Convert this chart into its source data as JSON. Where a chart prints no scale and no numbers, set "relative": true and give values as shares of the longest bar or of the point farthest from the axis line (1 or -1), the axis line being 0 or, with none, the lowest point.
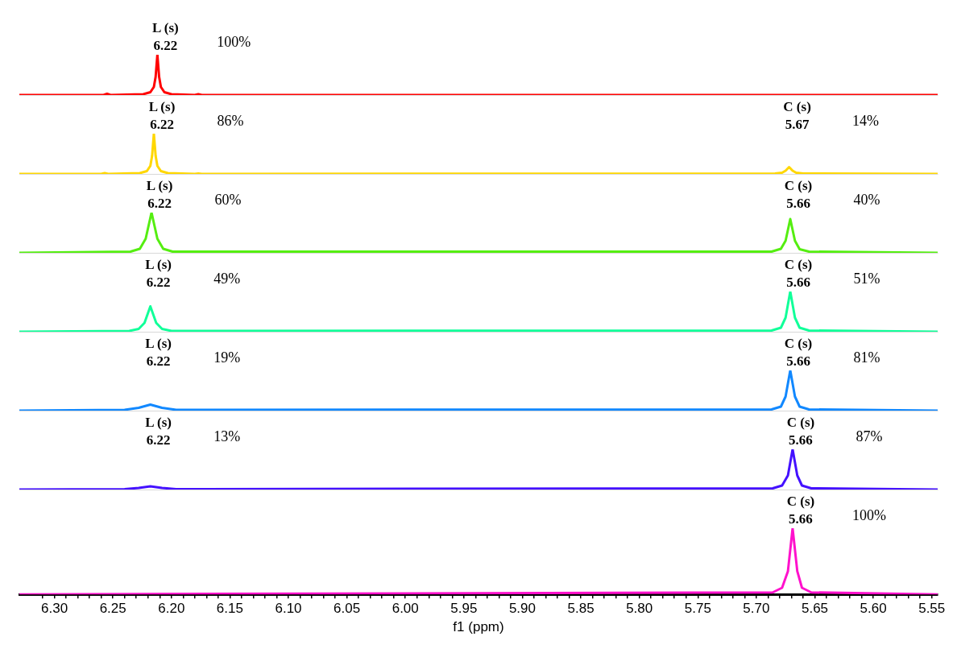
{
  "chart_data": [
    {
      "type": "line",
      "relative": true,
      "tick_labels": false,
      "marker": "none",
      "xlim": [
        6.33,
        5.545
      ],
      "series": [
        {
          "color": "#ff0000",
          "x": [
            6.33,
            6.258,
            6.255,
            6.252,
            6.224,
            6.218,
            6.215,
            6.2135,
            6.212,
            6.2105,
            6.209,
            6.206,
            6.2,
            6.18,
            6.177,
            6.174,
            5.545
          ],
          "values": [
            0,
            0,
            0.03,
            0,
            0.02,
            0.07,
            0.2,
            0.45,
            1,
            0.45,
            0.2,
            0.07,
            0.02,
            0,
            0.02,
            0,
            0
          ]
        }
      ],
      "annotations": [
        "L (s)\n6.22",
        "100%"
      ]
    },
    {
      "type": "line",
      "relative": true,
      "tick_labels": false,
      "marker": "none",
      "xlim": [
        6.33,
        5.545
      ],
      "series": [
        {
          "color": "#ffd700",
          "x": [
            6.33,
            6.26,
            6.257,
            6.254,
            6.227,
            6.221,
            6.218,
            6.2165,
            6.215,
            6.2135,
            6.212,
            6.209,
            6.203,
            6.18,
            6.177,
            6.174,
            5.684,
            5.678,
            5.675,
            5.672,
            5.669,
            5.666,
            5.66,
            5.545
          ],
          "values": [
            0,
            0,
            0.02,
            0,
            0.02,
            0.07,
            0.2,
            0.45,
            1,
            0.45,
            0.2,
            0.07,
            0.02,
            0,
            0.01,
            0,
            0.01,
            0.03,
            0.08,
            0.17,
            0.08,
            0.03,
            0.01,
            0
          ]
        }
      ],
      "annotations": [
        "L (s)\n6.22",
        "86%",
        "C (s)\n5.67",
        "14%"
      ]
    },
    {
      "type": "line",
      "relative": true,
      "tick_labels": false,
      "marker": "none",
      "xlim": [
        6.33,
        5.545
      ],
      "series": [
        {
          "color": "#55ee11",
          "x": [
            6.33,
            6.235,
            6.227,
            6.222,
            6.217,
            6.212,
            6.207,
            6.199,
            5.687,
            5.679,
            5.675,
            5.671,
            5.667,
            5.663,
            5.655,
            5.545
          ],
          "values": [
            0,
            0.03,
            0.1,
            0.35,
            1,
            0.35,
            0.1,
            0.03,
            0.03,
            0.1,
            0.3,
            0.84,
            0.3,
            0.09,
            0.03,
            0
          ]
        }
      ],
      "annotations": [
        "L (s)\n6.22",
        "60%",
        "C (s)\n5.66",
        "40%"
      ]
    },
    {
      "type": "line",
      "relative": true,
      "tick_labels": false,
      "marker": "none",
      "xlim": [
        6.33,
        5.545
      ],
      "series": [
        {
          "color": "#11ff99",
          "x": [
            6.33,
            6.236,
            6.228,
            6.223,
            6.218,
            6.213,
            6.208,
            6.2,
            5.687,
            5.679,
            5.675,
            5.671,
            5.667,
            5.663,
            5.655,
            5.545
          ],
          "values": [
            0,
            0.02,
            0.07,
            0.22,
            0.63,
            0.22,
            0.07,
            0.02,
            0.03,
            0.1,
            0.35,
            1,
            0.35,
            0.1,
            0.03,
            0
          ]
        }
      ],
      "annotations": [
        "L (s)\n6.22",
        "49%",
        "C (s)\n5.66",
        "51%"
      ]
    },
    {
      "type": "line",
      "relative": true,
      "tick_labels": false,
      "marker": "none",
      "xlim": [
        6.33,
        5.545
      ],
      "series": [
        {
          "color": "#1188ff",
          "x": [
            6.33,
            6.24,
            6.228,
            6.218,
            6.208,
            6.196,
            5.687,
            5.679,
            5.675,
            5.671,
            5.667,
            5.663,
            5.655,
            5.545
          ],
          "values": [
            0,
            0.02,
            0.07,
            0.15,
            0.07,
            0.02,
            0.03,
            0.1,
            0.35,
            1,
            0.35,
            0.1,
            0.03,
            0
          ]
        }
      ],
      "annotations": [
        "L (s)\n6.22",
        "19%",
        "C (s)\n5.66",
        "81%"
      ]
    },
    {
      "type": "line",
      "relative": true,
      "tick_labels": false,
      "marker": "none",
      "xlim": [
        6.33,
        5.545
      ],
      "series": [
        {
          "color": "#4411ff",
          "x": [
            6.33,
            6.24,
            6.228,
            6.218,
            6.208,
            6.196,
            5.686,
            5.678,
            5.673,
            5.669,
            5.665,
            5.661,
            5.653,
            5.545
          ],
          "values": [
            0,
            0.01,
            0.04,
            0.08,
            0.04,
            0.01,
            0.03,
            0.1,
            0.35,
            1,
            0.35,
            0.1,
            0.03,
            0
          ]
        }
      ],
      "annotations": [
        "L (s)\n6.22",
        "13%",
        "C (s)\n5.66",
        "87%"
      ]
    },
    {
      "type": "line",
      "relative": true,
      "xlabel": "f1 (ppm)",
      "xlim": [
        6.33,
        5.545
      ],
      "marker": "none",
      "xticks": [
        {
          "value": 6.31,
          "label": null
        },
        {
          "value": 6.3,
          "label": "6.30"
        },
        {
          "value": 6.29,
          "label": null
        },
        {
          "value": 6.28,
          "label": null
        },
        {
          "value": 6.27,
          "label": null
        },
        {
          "value": 6.26,
          "label": null
        },
        {
          "value": 6.25,
          "label": "6.25"
        },
        {
          "value": 6.24,
          "label": null
        },
        {
          "value": 6.23,
          "label": null
        },
        {
          "value": 6.22,
          "label": null
        },
        {
          "value": 6.21,
          "label": null
        },
        {
          "value": 6.2,
          "label": "6.20"
        },
        {
          "value": 6.19,
          "label": null
        },
        {
          "value": 6.18,
          "label": null
        },
        {
          "value": 6.17,
          "label": null
        },
        {
          "value": 6.16,
          "label": null
        },
        {
          "value": 6.15,
          "label": "6.15"
        },
        {
          "value": 6.14,
          "label": null
        },
        {
          "value": 6.13,
          "label": null
        },
        {
          "value": 6.12,
          "label": null
        },
        {
          "value": 6.11,
          "label": null
        },
        {
          "value": 6.1,
          "label": "6.10"
        },
        {
          "value": 6.09,
          "label": null
        },
        {
          "value": 6.08,
          "label": null
        },
        {
          "value": 6.07,
          "label": null
        },
        {
          "value": 6.06,
          "label": null
        },
        {
          "value": 6.05,
          "label": "6.05"
        },
        {
          "value": 6.04,
          "label": null
        },
        {
          "value": 6.03,
          "label": null
        },
        {
          "value": 6.02,
          "label": null
        },
        {
          "value": 6.01,
          "label": null
        },
        {
          "value": 6.0,
          "label": "6.00"
        },
        {
          "value": 5.99,
          "label": null
        },
        {
          "value": 5.98,
          "label": null
        },
        {
          "value": 5.97,
          "label": null
        },
        {
          "value": 5.96,
          "label": null
        },
        {
          "value": 5.95,
          "label": "5.95"
        },
        {
          "value": 5.94,
          "label": null
        },
        {
          "value": 5.93,
          "label": null
        },
        {
          "value": 5.92,
          "label": null
        },
        {
          "value": 5.91,
          "label": null
        },
        {
          "value": 5.9,
          "label": "5.90"
        },
        {
          "value": 5.89,
          "label": null
        },
        {
          "value": 5.88,
          "label": null
        },
        {
          "value": 5.87,
          "label": null
        },
        {
          "value": 5.86,
          "label": null
        },
        {
          "value": 5.85,
          "label": "5.85"
        },
        {
          "value": 5.84,
          "label": null
        },
        {
          "value": 5.83,
          "label": null
        },
        {
          "value": 5.82,
          "label": null
        },
        {
          "value": 5.81,
          "label": null
        },
        {
          "value": 5.8,
          "label": "5.80"
        },
        {
          "value": 5.79,
          "label": null
        },
        {
          "value": 5.78,
          "label": null
        },
        {
          "value": 5.77,
          "label": null
        },
        {
          "value": 5.76,
          "label": null
        },
        {
          "value": 5.75,
          "label": "5.75"
        },
        {
          "value": 5.74,
          "label": null
        },
        {
          "value": 5.73,
          "label": null
        },
        {
          "value": 5.72,
          "label": null
        },
        {
          "value": 5.71,
          "label": null
        },
        {
          "value": 5.7,
          "label": "5.70"
        },
        {
          "value": 5.69,
          "label": null
        },
        {
          "value": 5.68,
          "label": null
        },
        {
          "value": 5.67,
          "label": null
        },
        {
          "value": 5.66,
          "label": null
        },
        {
          "value": 5.65,
          "label": "5.65"
        },
        {
          "value": 5.64,
          "label": null
        },
        {
          "value": 5.63,
          "label": null
        },
        {
          "value": 5.62,
          "label": null
        },
        {
          "value": 5.61,
          "label": null
        },
        {
          "value": 5.6,
          "label": "5.60"
        },
        {
          "value": 5.59,
          "label": null
        },
        {
          "value": 5.58,
          "label": null
        },
        {
          "value": 5.57,
          "label": null
        },
        {
          "value": 5.56,
          "label": null
        },
        {
          "value": 5.55,
          "label": "5.55"
        }
      ],
      "series": [
        {
          "color": "#ff11cc",
          "x": [
            6.33,
            5.686,
            5.678,
            5.673,
            5.669,
            5.665,
            5.661,
            5.653,
            5.545
          ],
          "values": [
            0,
            0.03,
            0.1,
            0.35,
            1,
            0.35,
            0.1,
            0.03,
            0
          ]
        }
      ],
      "annotations": [
        "C (s)\n5.66",
        "100%"
      ]
    }
  ]
}
